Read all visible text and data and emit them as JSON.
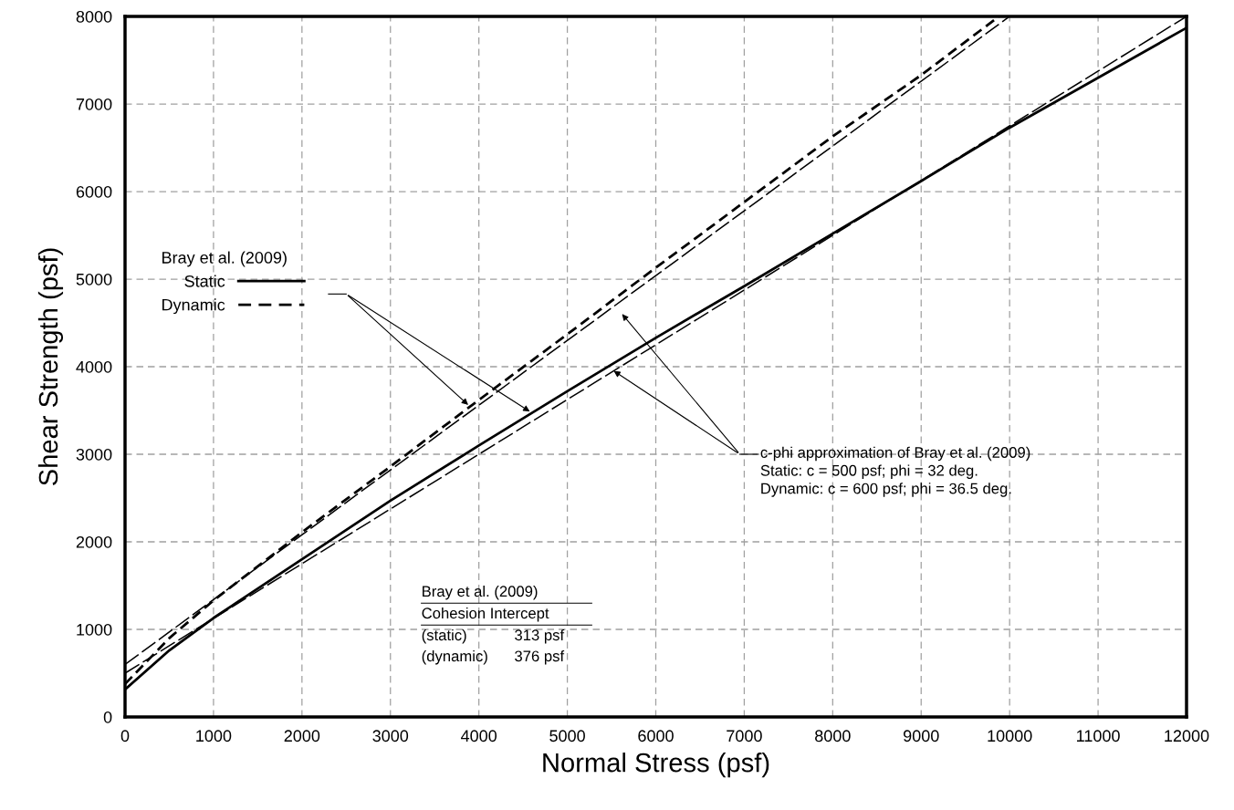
{
  "chart_data": {
    "type": "line",
    "xlabel": "Normal Stress (psf)",
    "ylabel": "Shear Strength (psf)",
    "legend_title": "Bray et al. (2009)",
    "legend": "left",
    "grid": true,
    "marker": "none",
    "xlim": [
      0,
      12000
    ],
    "ylim": [
      0,
      8000
    ],
    "xticks": [
      0,
      1000,
      2000,
      3000,
      4000,
      5000,
      6000,
      7000,
      8000,
      9000,
      10000,
      11000,
      12000
    ],
    "yticks": [
      0,
      1000,
      2000,
      3000,
      4000,
      5000,
      6000,
      7000,
      8000
    ],
    "series": [
      {
        "name": "Static",
        "color": "#000000",
        "line_style": "solid",
        "x": [
          0,
          500,
          1000,
          2000,
          3000,
          4000,
          5000,
          6000,
          7000,
          8000,
          9000,
          10000,
          11000,
          12000
        ],
        "values": [
          313,
          760,
          1130,
          1800,
          2470,
          3100,
          3720,
          4330,
          4920,
          5520,
          6120,
          6730,
          7300,
          7870
        ]
      },
      {
        "name": "Dynamic",
        "color": "#000000",
        "line_style": "dashed",
        "x": [
          0,
          500,
          1000,
          2000,
          3000,
          4000,
          5000,
          6000,
          7000,
          8000,
          9000,
          9880
        ],
        "values": [
          376,
          900,
          1330,
          2110,
          2860,
          3620,
          4370,
          5130,
          5880,
          6630,
          7330,
          8000
        ]
      },
      {
        "color": "#000000",
        "line_style": "dashed",
        "x": [
          0,
          12000
        ],
        "values": [
          500,
          8000
        ]
      },
      {
        "color": "#000000",
        "line_style": "dashed",
        "x": [
          0,
          10000
        ],
        "values": [
          600,
          8000
        ]
      }
    ],
    "annotations": [
      "c-phi approximation of Bray et al. (2009)\nStatic: c = 500 psf; phi = 32 deg.\nDynamic: c = 600 psf; phi = 36.5 deg.",
      "Bray et al. (2009)",
      "Cohesion Intercept",
      "(static)",
      "313 psf",
      "(dynamic)",
      "376 psf"
    ]
  }
}
